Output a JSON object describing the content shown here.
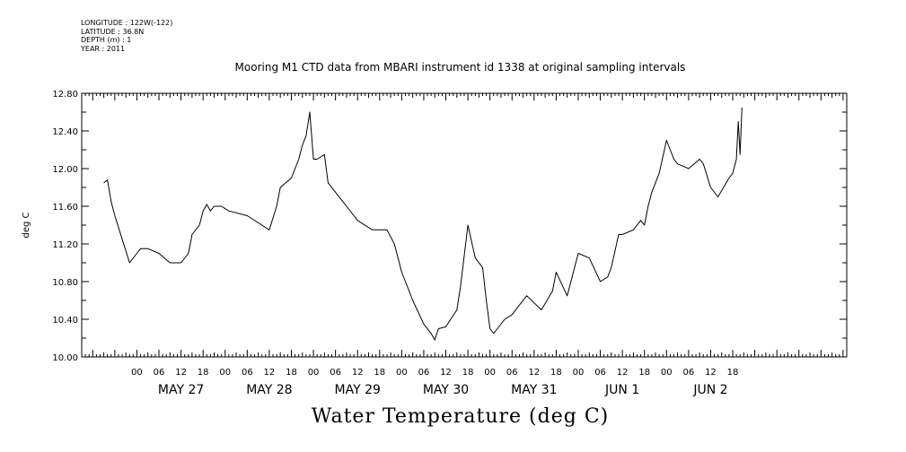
{
  "meta": {
    "longitude": "LONGITUDE : 122W(-122)",
    "latitude": "LATITUDE : 36.8N",
    "depth": "DEPTH (m) : 1",
    "year": "YEAR : 2011"
  },
  "chart_data": {
    "type": "line",
    "title": "Mooring M1 CTD data from MBARI instrument id 1338 at original sampling intervals",
    "xlabel": "Water Temperature (deg C)",
    "ylabel": "deg C",
    "ylim": [
      10.0,
      12.8
    ],
    "yticks": [
      "10.00",
      "10.40",
      "10.80",
      "11.20",
      "11.60",
      "12.00",
      "12.40",
      "12.80"
    ],
    "xlim_hours": [
      -15,
      193
    ],
    "x_ticks": [
      "00",
      "06",
      "12",
      "18",
      "00",
      "06",
      "12",
      "18",
      "00",
      "06",
      "12",
      "18",
      "00",
      "06",
      "12",
      "18",
      "00",
      "06",
      "12",
      "18",
      "00",
      "06",
      "12",
      "18",
      "00",
      "06",
      "12",
      "18"
    ],
    "day_labels": [
      "MAY 27",
      "MAY 28",
      "MAY 29",
      "MAY 30",
      "MAY 31",
      "JUN 1",
      "JUN 2"
    ],
    "grid": false,
    "series": [
      {
        "color": "#000000",
        "x": [
          "May 26 15:00",
          "May 26 16:00",
          "May 26 17:00",
          "May 26 18:00",
          "May 26 20:00",
          "May 26 22:00",
          "May 27 00:00",
          "May 27 01:00",
          "May 27 03:00",
          "May 27 06:00",
          "May 27 09:00",
          "May 27 12:00",
          "May 27 14:00",
          "May 27 15:00",
          "May 27 17:00",
          "May 27 18:00",
          "May 27 19:00",
          "May 27 20:00",
          "May 27 21:00",
          "May 27 23:00",
          "May 28 01:00",
          "May 28 06:00",
          "May 28 12:00",
          "May 28 14:00",
          "May 28 15:00",
          "May 28 18:00",
          "May 28 20:00",
          "May 28 21:00",
          "May 28 22:00",
          "May 28 23:00",
          "May 29 00:00",
          "May 29 01:00",
          "May 29 03:00",
          "May 29 04:00",
          "May 29 06:00",
          "May 29 09:00",
          "May 29 12:00",
          "May 29 16:00",
          "May 29 18:00",
          "May 29 20:00",
          "May 29 22:00",
          "May 30 00:00",
          "May 30 03:00",
          "May 30 06:00",
          "May 30 08:00",
          "May 30 09:00",
          "May 30 10:00",
          "May 30 12:00",
          "May 30 15:00",
          "May 30 16:00",
          "May 30 18:00",
          "May 30 20:00",
          "May 30 22:00",
          "May 30 23:00",
          "May 31 00:00",
          "May 31 01:00",
          "May 31 02:00",
          "May 31 04:00",
          "May 31 06:00",
          "May 31 08:00",
          "May 31 10:00",
          "May 31 14:00",
          "May 31 17:00",
          "May 31 18:00",
          "May 31 21:00",
          "May 31 23:00",
          "Jun 1 00:00",
          "Jun 1 03:00",
          "Jun 1 06:00",
          "Jun 1 08:00",
          "Jun 1 09:00",
          "Jun 1 11:00",
          "Jun 1 12:00",
          "Jun 1 15:00",
          "Jun 1 17:00",
          "Jun 1 18:00",
          "Jun 1 19:00",
          "Jun 1 20:00",
          "Jun 1 22:00",
          "Jun 2 00:00",
          "Jun 2 02:00",
          "Jun 2 03:00",
          "Jun 2 06:00",
          "Jun 2 09:00",
          "Jun 2 10:00",
          "Jun 2 12:00",
          "Jun 2 14:00",
          "Jun 2 17:00",
          "Jun 2 18:00",
          "Jun 2 19:00",
          "Jun 2 19:30",
          "Jun 2 20:00",
          "Jun 2 20:30"
        ],
        "values": [
          11.85,
          11.88,
          11.65,
          11.5,
          11.25,
          11.0,
          11.1,
          11.15,
          11.15,
          11.1,
          11.0,
          11.0,
          11.1,
          11.3,
          11.4,
          11.55,
          11.62,
          11.55,
          11.6,
          11.6,
          11.55,
          11.5,
          11.35,
          11.6,
          11.8,
          11.9,
          12.1,
          12.25,
          12.35,
          12.6,
          12.1,
          12.1,
          12.15,
          11.85,
          11.75,
          11.6,
          11.45,
          11.35,
          11.35,
          11.35,
          11.2,
          10.9,
          10.6,
          10.35,
          10.25,
          10.18,
          10.3,
          10.32,
          10.5,
          10.75,
          11.4,
          11.05,
          10.95,
          10.6,
          10.3,
          10.25,
          10.3,
          10.4,
          10.45,
          10.55,
          10.65,
          10.5,
          10.7,
          10.9,
          10.65,
          10.95,
          11.1,
          11.05,
          10.8,
          10.85,
          10.95,
          11.3,
          11.3,
          11.35,
          11.45,
          11.4,
          11.6,
          11.75,
          11.95,
          12.3,
          12.1,
          12.05,
          12.0,
          12.1,
          12.05,
          11.8,
          11.7,
          11.9,
          11.95,
          12.1,
          12.5,
          12.15,
          12.65
        ]
      }
    ]
  }
}
